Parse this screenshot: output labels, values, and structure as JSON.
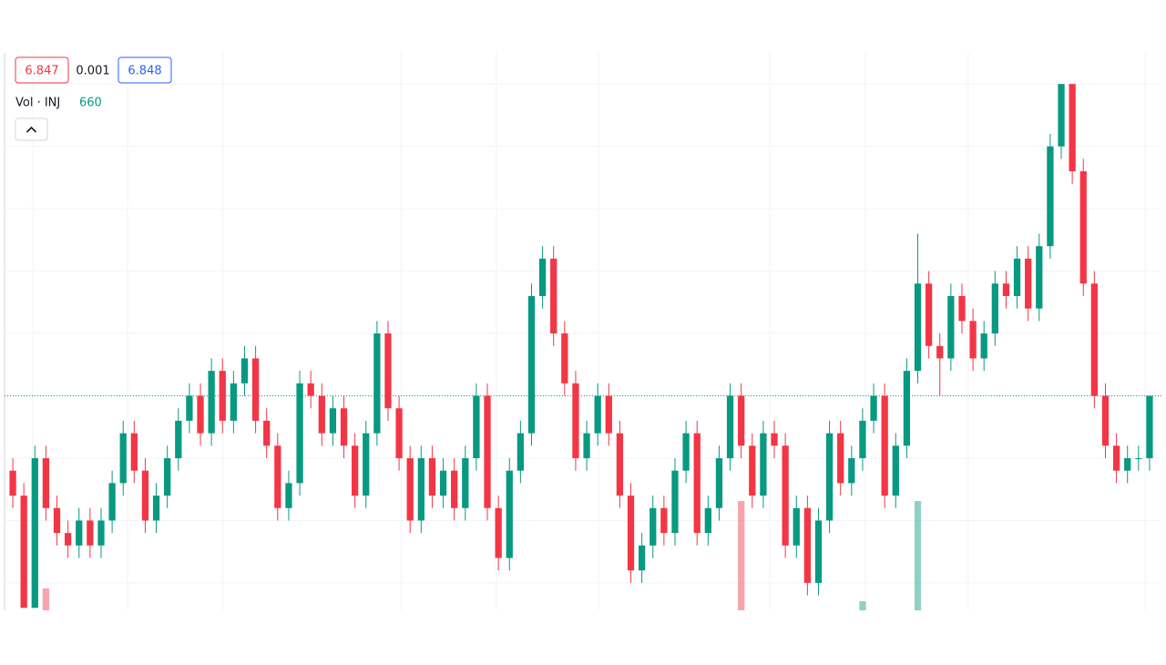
{
  "chart_data": {
    "type": "candlestick",
    "bid": 6.847,
    "spread": 0.001,
    "ask": 6.848,
    "volume_title": "Vol · INJ",
    "ylim": [
      6.8298,
      6.8745
    ],
    "ygrid": [
      6.872,
      6.867,
      6.862,
      6.857,
      6.852,
      6.847,
      6.842,
      6.837,
      6.832
    ],
    "up_color": "#089981",
    "down_color": "#f23645",
    "series": [
      {
        "name": "INJ",
        "open": [
          6.841,
          6.839,
          6.83,
          6.842,
          6.838,
          6.836,
          6.835,
          6.837,
          6.835,
          6.837,
          6.84,
          6.844,
          6.841,
          6.837,
          6.839,
          6.842,
          6.845,
          6.847,
          6.844,
          6.849,
          6.845,
          6.848,
          6.85,
          6.845,
          6.843,
          6.838,
          6.84,
          6.848,
          6.847,
          6.844,
          6.846,
          6.843,
          6.839,
          6.844,
          6.852,
          6.846,
          6.842,
          6.837,
          6.842,
          6.839,
          6.841,
          6.838,
          6.842,
          6.847,
          6.838,
          6.834,
          6.841,
          6.844,
          6.855,
          6.858,
          6.852,
          6.848,
          6.842,
          6.844,
          6.847,
          6.844,
          6.839,
          6.833,
          6.835,
          6.838,
          6.836,
          6.841,
          6.844,
          6.836,
          6.838,
          6.842,
          6.847,
          6.843,
          6.839,
          6.844,
          6.843,
          6.835,
          6.838,
          6.832,
          6.837,
          6.844,
          6.84,
          6.842,
          6.845,
          6.847,
          6.839,
          6.843,
          6.849,
          6.856,
          6.851,
          6.85,
          6.855,
          6.853,
          6.85,
          6.852,
          6.856,
          6.855,
          6.858,
          6.854,
          6.859,
          6.867,
          6.872,
          6.865,
          6.856,
          6.847,
          6.843,
          6.841,
          6.842,
          6.842
        ],
        "high": [
          6.842,
          6.84,
          6.843,
          6.843,
          6.839,
          6.837,
          6.838,
          6.838,
          6.838,
          6.841,
          6.845,
          6.845,
          6.842,
          6.84,
          6.843,
          6.846,
          6.848,
          6.848,
          6.85,
          6.85,
          6.849,
          6.851,
          6.851,
          6.846,
          6.844,
          6.841,
          6.849,
          6.849,
          6.848,
          6.847,
          6.847,
          6.844,
          6.845,
          6.853,
          6.853,
          6.847,
          6.843,
          6.843,
          6.843,
          6.842,
          6.842,
          6.843,
          6.848,
          6.848,
          6.839,
          6.842,
          6.845,
          6.856,
          6.859,
          6.859,
          6.853,
          6.849,
          6.845,
          6.848,
          6.848,
          6.845,
          6.84,
          6.836,
          6.839,
          6.839,
          6.842,
          6.845,
          6.845,
          6.839,
          6.843,
          6.848,
          6.848,
          6.844,
          6.845,
          6.845,
          6.844,
          6.839,
          6.839,
          6.838,
          6.845,
          6.845,
          6.843,
          6.846,
          6.848,
          6.848,
          6.844,
          6.85,
          6.86,
          6.857,
          6.852,
          6.856,
          6.856,
          6.854,
          6.853,
          6.857,
          6.857,
          6.859,
          6.859,
          6.86,
          6.868,
          6.872,
          6.872,
          6.866,
          6.857,
          6.848,
          6.844,
          6.843,
          6.843,
          6.847
        ],
        "low": [
          6.838,
          6.83,
          6.83,
          6.837,
          6.835,
          6.834,
          6.834,
          6.834,
          6.834,
          6.836,
          6.839,
          6.84,
          6.836,
          6.836,
          6.838,
          6.841,
          6.844,
          6.843,
          6.843,
          6.844,
          6.844,
          6.847,
          6.844,
          6.842,
          6.837,
          6.837,
          6.839,
          6.846,
          6.843,
          6.843,
          6.842,
          6.838,
          6.838,
          6.843,
          6.845,
          6.841,
          6.836,
          6.836,
          6.838,
          6.838,
          6.837,
          6.837,
          6.841,
          6.837,
          6.833,
          6.833,
          6.84,
          6.843,
          6.854,
          6.851,
          6.847,
          6.841,
          6.841,
          6.843,
          6.843,
          6.838,
          6.832,
          6.832,
          6.834,
          6.835,
          6.835,
          6.84,
          6.835,
          6.835,
          6.837,
          6.841,
          6.842,
          6.838,
          6.838,
          6.842,
          6.834,
          6.834,
          6.831,
          6.831,
          6.836,
          6.839,
          6.839,
          6.841,
          6.844,
          6.838,
          6.838,
          6.842,
          6.848,
          6.85,
          6.847,
          6.849,
          6.852,
          6.849,
          6.849,
          6.851,
          6.854,
          6.854,
          6.853,
          6.853,
          6.858,
          6.866,
          6.864,
          6.855,
          6.846,
          6.842,
          6.84,
          6.84,
          6.841,
          6.841
        ],
        "close": [
          6.839,
          6.83,
          6.842,
          6.838,
          6.836,
          6.835,
          6.837,
          6.835,
          6.837,
          6.84,
          6.844,
          6.841,
          6.837,
          6.839,
          6.842,
          6.845,
          6.847,
          6.844,
          6.849,
          6.845,
          6.848,
          6.85,
          6.845,
          6.843,
          6.838,
          6.84,
          6.848,
          6.847,
          6.844,
          6.846,
          6.843,
          6.839,
          6.844,
          6.852,
          6.846,
          6.842,
          6.837,
          6.842,
          6.839,
          6.841,
          6.838,
          6.842,
          6.847,
          6.838,
          6.834,
          6.841,
          6.844,
          6.855,
          6.858,
          6.852,
          6.848,
          6.842,
          6.844,
          6.847,
          6.844,
          6.839,
          6.833,
          6.835,
          6.838,
          6.836,
          6.841,
          6.844,
          6.836,
          6.838,
          6.842,
          6.847,
          6.843,
          6.839,
          6.844,
          6.843,
          6.835,
          6.838,
          6.832,
          6.837,
          6.844,
          6.84,
          6.842,
          6.845,
          6.847,
          6.839,
          6.843,
          6.849,
          6.856,
          6.851,
          6.85,
          6.855,
          6.853,
          6.85,
          6.852,
          6.856,
          6.855,
          6.858,
          6.854,
          6.859,
          6.867,
          6.872,
          6.865,
          6.856,
          6.847,
          6.843,
          6.841,
          6.842,
          6.842,
          6.847
        ],
        "volume": [
          600,
          600,
          600,
          2250,
          600,
          600,
          600,
          600,
          600,
          600,
          600,
          600,
          600,
          600,
          600,
          600,
          600,
          600,
          600,
          600,
          600,
          600,
          600,
          600,
          600,
          600,
          600,
          600,
          600,
          600,
          600,
          600,
          600,
          600,
          600,
          600,
          600,
          600,
          600,
          600,
          600,
          600,
          600,
          600,
          600,
          600,
          600,
          600,
          600,
          600,
          600,
          600,
          600,
          600,
          600,
          600,
          600,
          600,
          600,
          600,
          600,
          600,
          600,
          600,
          600,
          600,
          6250,
          600,
          600,
          600,
          600,
          600,
          600,
          600,
          600,
          600,
          600,
          1670,
          600,
          600,
          600,
          600,
          6250,
          600,
          600,
          600,
          600,
          600,
          600,
          600,
          600,
          600,
          600,
          600,
          600,
          600,
          600,
          600,
          600,
          600,
          600,
          600,
          600,
          660
        ]
      }
    ]
  }
}
